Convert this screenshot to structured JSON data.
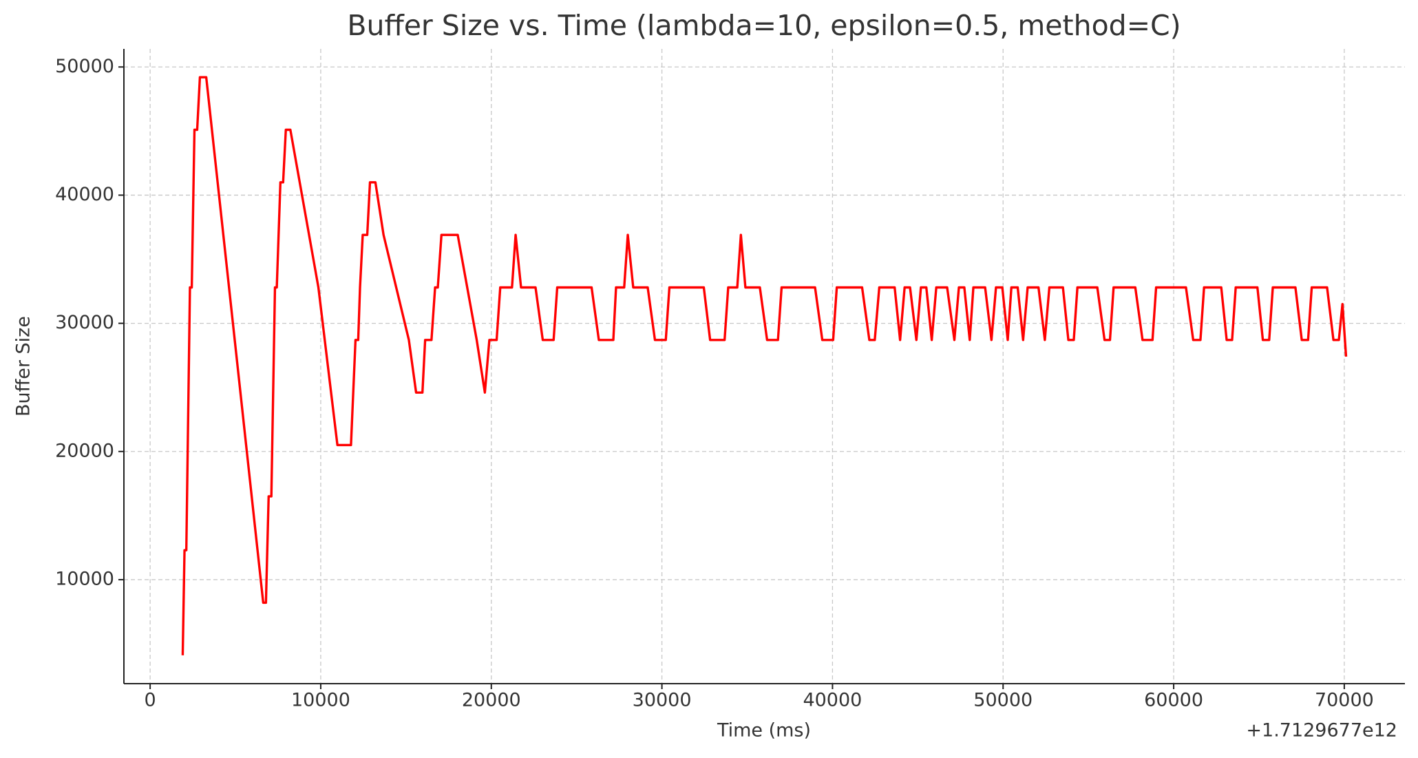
{
  "chart_data": {
    "type": "line",
    "title": "Buffer Size vs. Time (lambda=10, epsilon=0.5, method=C)",
    "x_label": "Time (ms)",
    "y_label": "Buffer Size",
    "x_offset_label": "+1.7129677e12",
    "x": [
      1909,
      2015,
      2121,
      2333,
      2440,
      2598,
      2757,
      2917,
      3288,
      6629,
      6788,
      6947,
      7106,
      7318,
      7424,
      7636,
      7795,
      7955,
      8220,
      9864,
      10978,
      11773,
      12038,
      12197,
      12303,
      12462,
      12727,
      12887,
      13205,
      13682,
      15167,
      15591,
      15962,
      16121,
      16492,
      16704,
      16863,
      17076,
      18030,
      19144,
      19621,
      19886,
      20311,
      20523,
      21212,
      21424,
      21742,
      22591,
      23015,
      23651,
      23863,
      25878,
      26303,
      27151,
      27311,
      27788,
      28000,
      28318,
      29167,
      29591,
      30227,
      30439,
      32455,
      32826,
      33674,
      33886,
      34417,
      34629,
      34894,
      35742,
      36166,
      36803,
      37015,
      38977,
      39402,
      40038,
      40250,
      41735,
      42159,
      42477,
      42742,
      43644,
      43962,
      44227,
      44545,
      44917,
      45182,
      45500,
      45818,
      46083,
      46720,
      47144,
      47409,
      47727,
      48045,
      48257,
      48947,
      49318,
      49583,
      49955,
      50273,
      50485,
      50856,
      51174,
      51439,
      52076,
      52447,
      52712,
      53508,
      53826,
      54144,
      54356,
      55523,
      55947,
      56265,
      56477,
      57750,
      58174,
      58758,
      58970,
      60720,
      61144,
      61568,
      61780,
      62788,
      63106,
      63424,
      63636,
      64909,
      65227,
      65598,
      65811,
      67136,
      67508,
      67879,
      68091,
      68992,
      69364,
      69682,
      69894,
      70106
    ],
    "values": [
      4100,
      12300,
      12300,
      32800,
      32800,
      45100,
      45100,
      49200,
      49200,
      8200,
      8200,
      16500,
      16500,
      32800,
      32800,
      41000,
      41000,
      45100,
      45100,
      32800,
      20500,
      20500,
      28700,
      28700,
      32800,
      36900,
      36900,
      41000,
      41000,
      36900,
      28700,
      24600,
      24600,
      28700,
      28700,
      32800,
      32800,
      36900,
      36900,
      28700,
      24600,
      28700,
      28700,
      32800,
      32800,
      36900,
      32800,
      32800,
      28700,
      28700,
      32800,
      32800,
      28700,
      28700,
      32800,
      32800,
      36900,
      32800,
      32800,
      28700,
      28700,
      32800,
      32800,
      28700,
      28700,
      32800,
      32800,
      36900,
      32800,
      32800,
      28700,
      28700,
      32800,
      32800,
      28700,
      28700,
      32800,
      32800,
      28700,
      28700,
      32800,
      32800,
      28700,
      32800,
      32800,
      28700,
      32800,
      32800,
      28700,
      32800,
      32800,
      28700,
      32800,
      32800,
      28700,
      32800,
      32800,
      28700,
      32800,
      32800,
      28700,
      32800,
      32800,
      28700,
      32800,
      32800,
      28700,
      32800,
      32800,
      28700,
      28700,
      32800,
      32800,
      28700,
      28700,
      32800,
      32800,
      28700,
      28700,
      32800,
      32800,
      28700,
      28700,
      32800,
      32800,
      28700,
      28700,
      32800,
      32800,
      28700,
      28700,
      32800,
      32800,
      28700,
      28700,
      32800,
      32800,
      28700,
      28700,
      31500,
      27400
    ],
    "color": "#ff0000",
    "xlim": [
      -1538,
      73555
    ],
    "ylim": [
      1887,
      51411
    ],
    "xticks": [
      0,
      10000,
      20000,
      30000,
      40000,
      50000,
      60000,
      70000
    ],
    "yticks": [
      10000,
      20000,
      30000,
      40000,
      50000
    ],
    "grid": true
  }
}
